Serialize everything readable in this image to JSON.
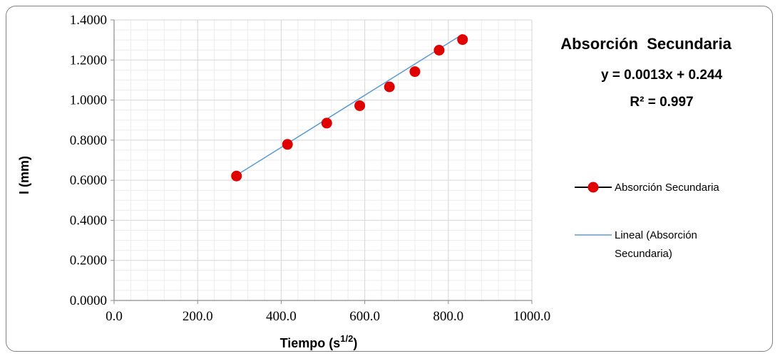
{
  "chart_data": {
    "type": "scatter",
    "title": "Absorción  Secundaria",
    "xlabel_base": "Tiempo (s",
    "xlabel_sup": "1/2",
    "xlabel_end": ")",
    "ylabel": "I (mm)",
    "xlim": [
      0,
      1000
    ],
    "ylim": [
      0,
      1.4
    ],
    "x_ticks": [
      "0.0",
      "200.0",
      "400.0",
      "600.0",
      "800.0",
      "1000.0"
    ],
    "y_ticks": [
      "0.0000",
      "0.2000",
      "0.4000",
      "0.6000",
      "0.8000",
      "1.0000",
      "1.2000",
      "1.4000"
    ],
    "grid": true,
    "series": [
      {
        "name": "Absorción Secundaria",
        "color": "#e00000",
        "x": [
          293,
          415,
          509,
          588,
          659,
          720,
          778,
          834
        ],
        "y": [
          0.621,
          0.779,
          0.885,
          0.972,
          1.066,
          1.142,
          1.249,
          1.302
        ]
      }
    ],
    "trendline": {
      "name_line1": "Lineal (Absorción",
      "name_line2": "Secundaria)",
      "color": "#5b9bd5",
      "slope": 0.0013,
      "intercept": 0.244,
      "x_range": [
        293,
        834
      ]
    },
    "equation": "y = 0.0013x + 0.244",
    "r_squared": "R² = 0.997",
    "legend_position": "right"
  }
}
